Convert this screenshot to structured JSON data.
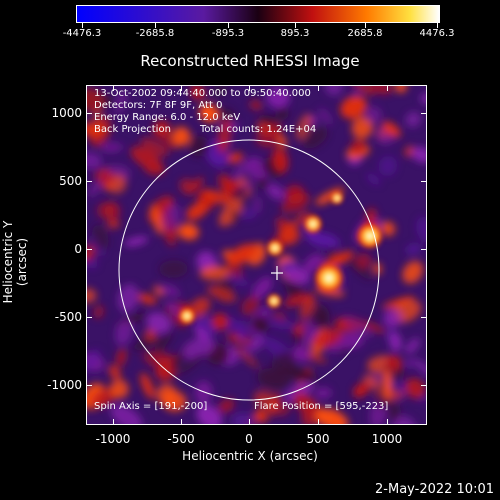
{
  "colorbar": {
    "labels": [
      "-4476.3",
      "-2685.8",
      "-895.3",
      "895.3",
      "2685.8",
      "4476.3"
    ]
  },
  "title": "Reconstructed RHESSI Image",
  "info": {
    "time_range": "13-Oct-2002 09:44:40.000 to 09:50:40.000",
    "detectors": "Detectors: 7F 8F 9F, Att 0",
    "energy": "Energy Range: 6.0 - 12.0 keV",
    "method": "Back Projection",
    "counts": "Total counts: 1.24E+04",
    "spin_axis": "Spin Axis = [191,-200]",
    "flare_position": "Flare Position = [595,-223]"
  },
  "axes": {
    "xlabel": "Heliocentric X (arcsec)",
    "ylabel": "Heliocentric Y (arcsec)",
    "xticks": [
      "-1000",
      "-500",
      "0",
      "500",
      "1000"
    ],
    "yticks": [
      "1000",
      "500",
      "0",
      "-500",
      "-1000"
    ]
  },
  "footer_date": "2-May-2022 10:01"
}
